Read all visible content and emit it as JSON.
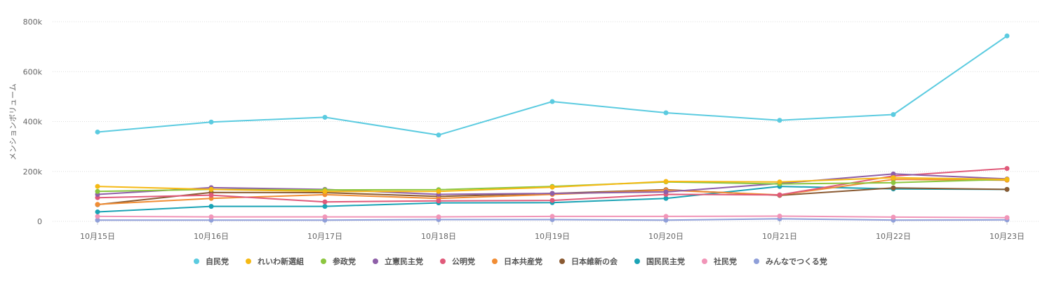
{
  "chart_data": {
    "type": "line",
    "ylabel": "メンションボリューム",
    "ylim": [
      0,
      800000
    ],
    "yticks": [
      {
        "value": 0,
        "label": "0"
      },
      {
        "value": 200000,
        "label": "200k"
      },
      {
        "value": 400000,
        "label": "400k"
      },
      {
        "value": 600000,
        "label": "600k"
      },
      {
        "value": 800000,
        "label": "800k"
      }
    ],
    "categories": [
      "10月15日",
      "10月16日",
      "10月17日",
      "10月18日",
      "10月19日",
      "10月20日",
      "10月21日",
      "10月22日",
      "10月23日"
    ],
    "grid": true,
    "legend_position": "bottom",
    "series": [
      {
        "name": "自民党",
        "color": "#5bcbe0",
        "values": [
          358000,
          398000,
          417000,
          346000,
          480000,
          435000,
          405000,
          428000,
          743000
        ]
      },
      {
        "name": "れいわ新選組",
        "color": "#f5b914",
        "values": [
          140000,
          128000,
          120000,
          120000,
          137000,
          160000,
          158000,
          175000,
          168000
        ]
      },
      {
        "name": "参政党",
        "color": "#8cc63f",
        "values": [
          120000,
          128000,
          126000,
          127000,
          140000,
          158000,
          150000,
          155000,
          168000
        ]
      },
      {
        "name": "立憲民主党",
        "color": "#8e5fa8",
        "values": [
          108000,
          135000,
          128000,
          108000,
          112000,
          118000,
          152000,
          190000,
          170000
        ]
      },
      {
        "name": "公明党",
        "color": "#e05a7a",
        "values": [
          95000,
          105000,
          78000,
          82000,
          84000,
          108000,
          106000,
          182000,
          212000
        ]
      },
      {
        "name": "日本共産党",
        "color": "#f18d34",
        "values": [
          68000,
          92000,
          107000,
          92000,
          108000,
          125000,
          106000,
          168000,
          165000
        ]
      },
      {
        "name": "日本維新の会",
        "color": "#8a5a32",
        "values": [
          67000,
          116000,
          115000,
          100000,
          112000,
          127000,
          104000,
          134000,
          128000
        ]
      },
      {
        "name": "国民民主党",
        "color": "#1aa3b5",
        "values": [
          38000,
          60000,
          60000,
          74000,
          75000,
          92000,
          140000,
          130000,
          128000
        ]
      },
      {
        "name": "社民党",
        "color": "#f195b8",
        "values": [
          20000,
          18000,
          18000,
          18000,
          20000,
          20000,
          21000,
          17000,
          15000
        ]
      },
      {
        "name": "みんなでつくる党",
        "color": "#8f9fd9",
        "values": [
          5000,
          5000,
          5000,
          7000,
          7000,
          5000,
          10000,
          5000,
          6000
        ]
      }
    ]
  }
}
